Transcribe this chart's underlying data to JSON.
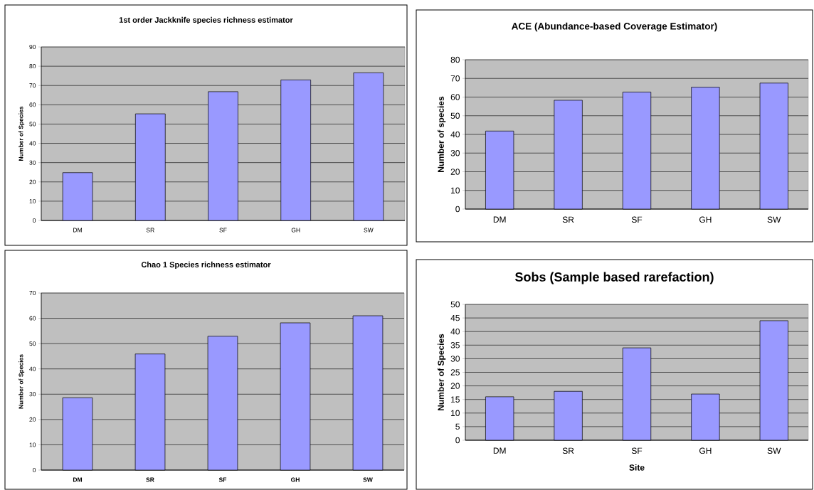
{
  "chart_data": [
    {
      "type": "bar",
      "title": "1st order Jackknife species richness estimator",
      "ylabel": "Number of Species",
      "categories": [
        "DM",
        "SR",
        "SF",
        "GH",
        "SW"
      ],
      "values": [
        24.8,
        55.3,
        66.8,
        72.9,
        76.6
      ],
      "color": "#9999ff",
      "ylim": [
        0,
        90
      ],
      "yticks": [
        0,
        10,
        20,
        30,
        40,
        50,
        60,
        70,
        80,
        90
      ],
      "grid": "y"
    },
    {
      "type": "bar",
      "title": "ACE (Abundance-based Coverage Estimator)",
      "ylabel": "Number of species",
      "categories": [
        "DM",
        "SR",
        "SF",
        "GH",
        "SW"
      ],
      "values": [
        41.8,
        58.3,
        62.7,
        65.3,
        67.5
      ],
      "color": "#9999ff",
      "ylim": [
        0,
        80
      ],
      "yticks": [
        0,
        10,
        20,
        30,
        40,
        50,
        60,
        70,
        80
      ],
      "grid": "y"
    },
    {
      "type": "bar",
      "title": "Chao 1 Species richness estimator",
      "ylabel": "Number of Species",
      "categories": [
        "DM",
        "SR",
        "SF",
        "GH",
        "SW"
      ],
      "values": [
        28.6,
        45.9,
        52.9,
        58.2,
        61.0
      ],
      "color": "#9999ff",
      "ylim": [
        0,
        70
      ],
      "yticks": [
        0,
        10,
        20,
        30,
        40,
        50,
        60,
        70
      ],
      "grid": "y"
    },
    {
      "type": "bar",
      "title": "Sobs (Sample based rarefaction)",
      "xlabel": "Site",
      "ylabel": "Number of Species",
      "categories": [
        "DM",
        "SR",
        "SF",
        "GH",
        "SW"
      ],
      "values": [
        16,
        18,
        34,
        17,
        44
      ],
      "color": "#9999ff",
      "ylim": [
        0,
        50
      ],
      "yticks": [
        0,
        5,
        10,
        15,
        20,
        25,
        30,
        35,
        40,
        45,
        50
      ],
      "grid": "y"
    }
  ]
}
